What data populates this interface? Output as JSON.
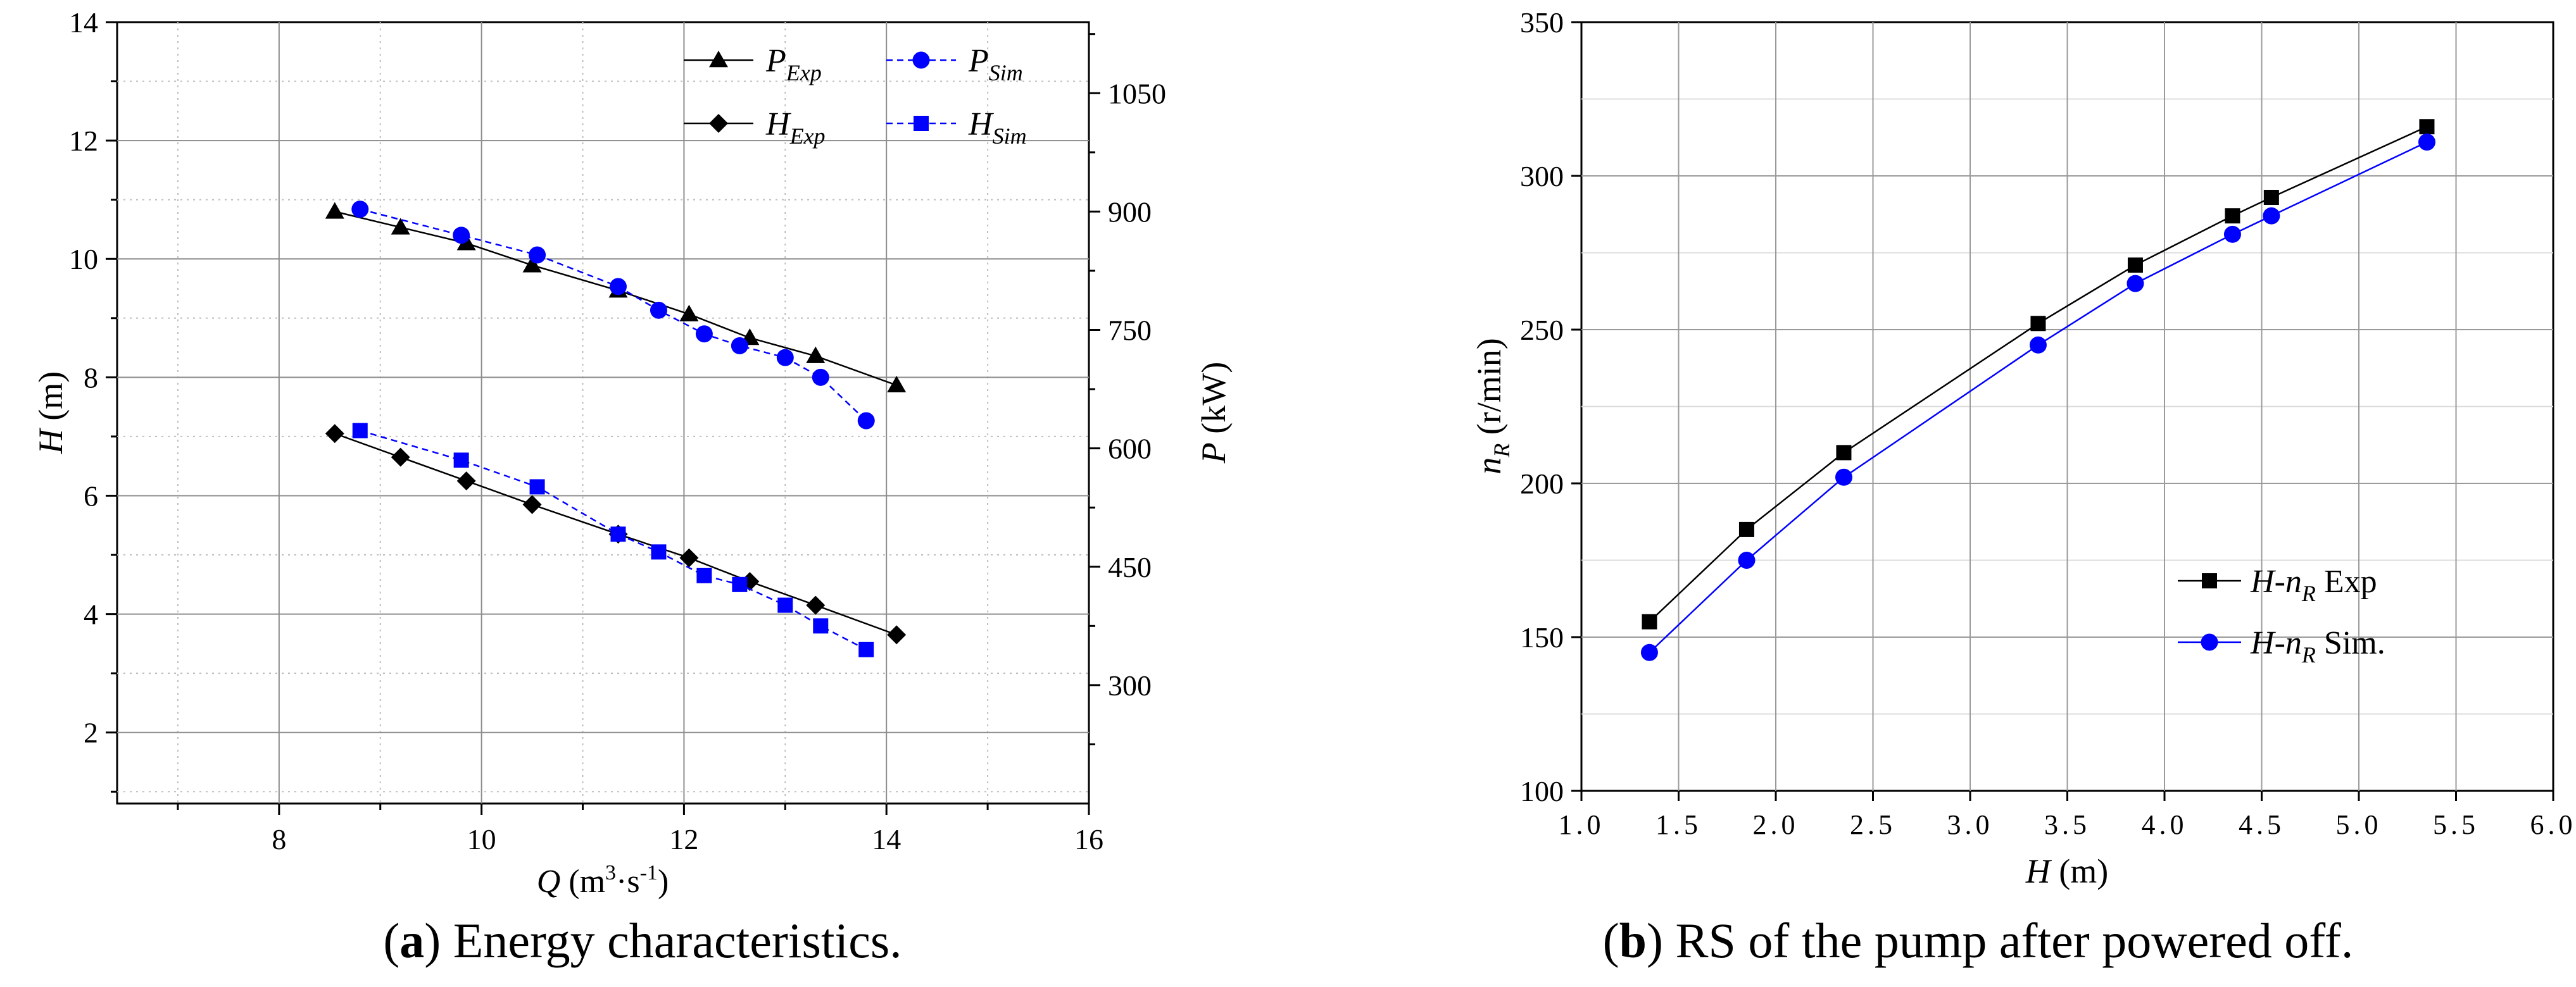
{
  "chart_data": [
    {
      "id": "a",
      "type": "line",
      "caption_letter": "a",
      "caption_text": "Energy characteristics.",
      "xlabel_main": "Q",
      "xlabel_unit_pre": " (m",
      "xlabel_unit_sup1": "3",
      "xlabel_unit_mid": "·s",
      "xlabel_unit_sup2": "-1",
      "xlabel_unit_post": ")",
      "ylabel_main": "H",
      "ylabel_unit": " (m)",
      "y2label_main": "P",
      "y2label_unit": " (kW)",
      "xlim": [
        6.4,
        16
      ],
      "ylim": [
        0.8,
        14
      ],
      "y2lim": [
        150,
        1140
      ],
      "xticks": [
        8,
        10,
        12,
        14,
        16
      ],
      "xtick_labels": [
        "8",
        "10",
        "12",
        "14",
        "16"
      ],
      "yticks": [
        2,
        4,
        6,
        8,
        10,
        12,
        14
      ],
      "ytick_labels": [
        "2",
        "4",
        "6",
        "8",
        "10",
        "12",
        "14"
      ],
      "y2ticks": [
        300,
        450,
        600,
        750,
        900,
        1050
      ],
      "y2tick_labels": [
        "300",
        "450",
        "600",
        "750",
        "900",
        "1050"
      ],
      "grid": true,
      "legend_position": "top-right",
      "series": [
        {
          "name": "P_Exp",
          "label_main": "P",
          "label_sub": "Exp",
          "axis": "right",
          "color": "#000000",
          "marker": "triangle",
          "dashed": false,
          "x": [
            8.55,
            9.2,
            9.85,
            10.5,
            11.35,
            12.05,
            12.65,
            13.3,
            14.1
          ],
          "y": [
            900,
            880,
            860,
            832,
            800,
            770,
            740,
            717,
            680
          ]
        },
        {
          "name": "P_Sim",
          "label_main": "P",
          "label_sub": "Sim",
          "axis": "right",
          "color": "#0000ff",
          "marker": "circle",
          "dashed": true,
          "x": [
            8.8,
            9.8,
            10.55,
            11.35,
            11.75,
            12.2,
            12.55,
            13.0,
            13.35,
            13.8
          ],
          "y": [
            903,
            870,
            845,
            805,
            775,
            745,
            730,
            715,
            690,
            635
          ]
        },
        {
          "name": "H_Exp",
          "label_main": "H",
          "label_sub": "Exp",
          "axis": "left",
          "color": "#000000",
          "marker": "diamond",
          "dashed": false,
          "x": [
            8.55,
            9.2,
            9.85,
            10.5,
            11.35,
            12.05,
            12.65,
            13.3,
            14.1
          ],
          "y": [
            7.05,
            6.65,
            6.25,
            5.85,
            5.35,
            4.95,
            4.55,
            4.15,
            3.65
          ]
        },
        {
          "name": "H_Sim",
          "label_main": "H",
          "label_sub": "Sim",
          "axis": "left",
          "color": "#0000ff",
          "marker": "square",
          "dashed": true,
          "x": [
            8.8,
            9.8,
            10.55,
            11.35,
            11.75,
            12.2,
            12.55,
            13.0,
            13.35,
            13.8
          ],
          "y": [
            7.1,
            6.6,
            6.15,
            5.35,
            5.05,
            4.65,
            4.5,
            4.15,
            3.8,
            3.4
          ]
        }
      ]
    },
    {
      "id": "b",
      "type": "line",
      "caption_letter": "b",
      "caption_text": "RS of the pump after powered off.",
      "xlabel_main": "H",
      "xlabel_unit": " (m)",
      "ylabel_main": "n",
      "ylabel_sub": "R",
      "ylabel_unit": " (r/min)",
      "xlim": [
        1.0,
        6.0
      ],
      "ylim": [
        100,
        350
      ],
      "xticks": [
        1.0,
        1.5,
        2.0,
        2.5,
        3.0,
        3.5,
        4.0,
        4.5,
        5.0,
        5.5,
        6.0
      ],
      "xtick_labels": [
        "1.0",
        "1.5",
        "2.0",
        "2.5",
        "3.0",
        "3.5",
        "4.0",
        "4.5",
        "5.0",
        "5.5",
        "6.0"
      ],
      "yticks": [
        100,
        150,
        200,
        250,
        300,
        350
      ],
      "ytick_labels": [
        "100",
        "150",
        "200",
        "250",
        "300",
        "350"
      ],
      "grid": true,
      "legend_position": "lower-right",
      "series": [
        {
          "name": "H-n_R Exp",
          "label_main": "H",
          "label_dash": "-n",
          "label_sub": "R",
          "label_tail": " Exp",
          "color": "#000000",
          "marker": "square",
          "x": [
            1.35,
            1.85,
            2.35,
            3.35,
            3.85,
            4.35,
            4.55,
            5.35
          ],
          "y": [
            155,
            185,
            210,
            252,
            271,
            287,
            293,
            316
          ]
        },
        {
          "name": "H-n_R Sim.",
          "label_main": "H",
          "label_dash": "-n",
          "label_sub": "R",
          "label_tail": " Sim.",
          "color": "#0000ff",
          "marker": "circle",
          "x": [
            1.35,
            1.85,
            2.35,
            3.35,
            3.85,
            4.35,
            4.55,
            5.35
          ],
          "y": [
            145,
            175,
            202,
            245,
            265,
            281,
            287,
            311
          ]
        }
      ]
    }
  ]
}
